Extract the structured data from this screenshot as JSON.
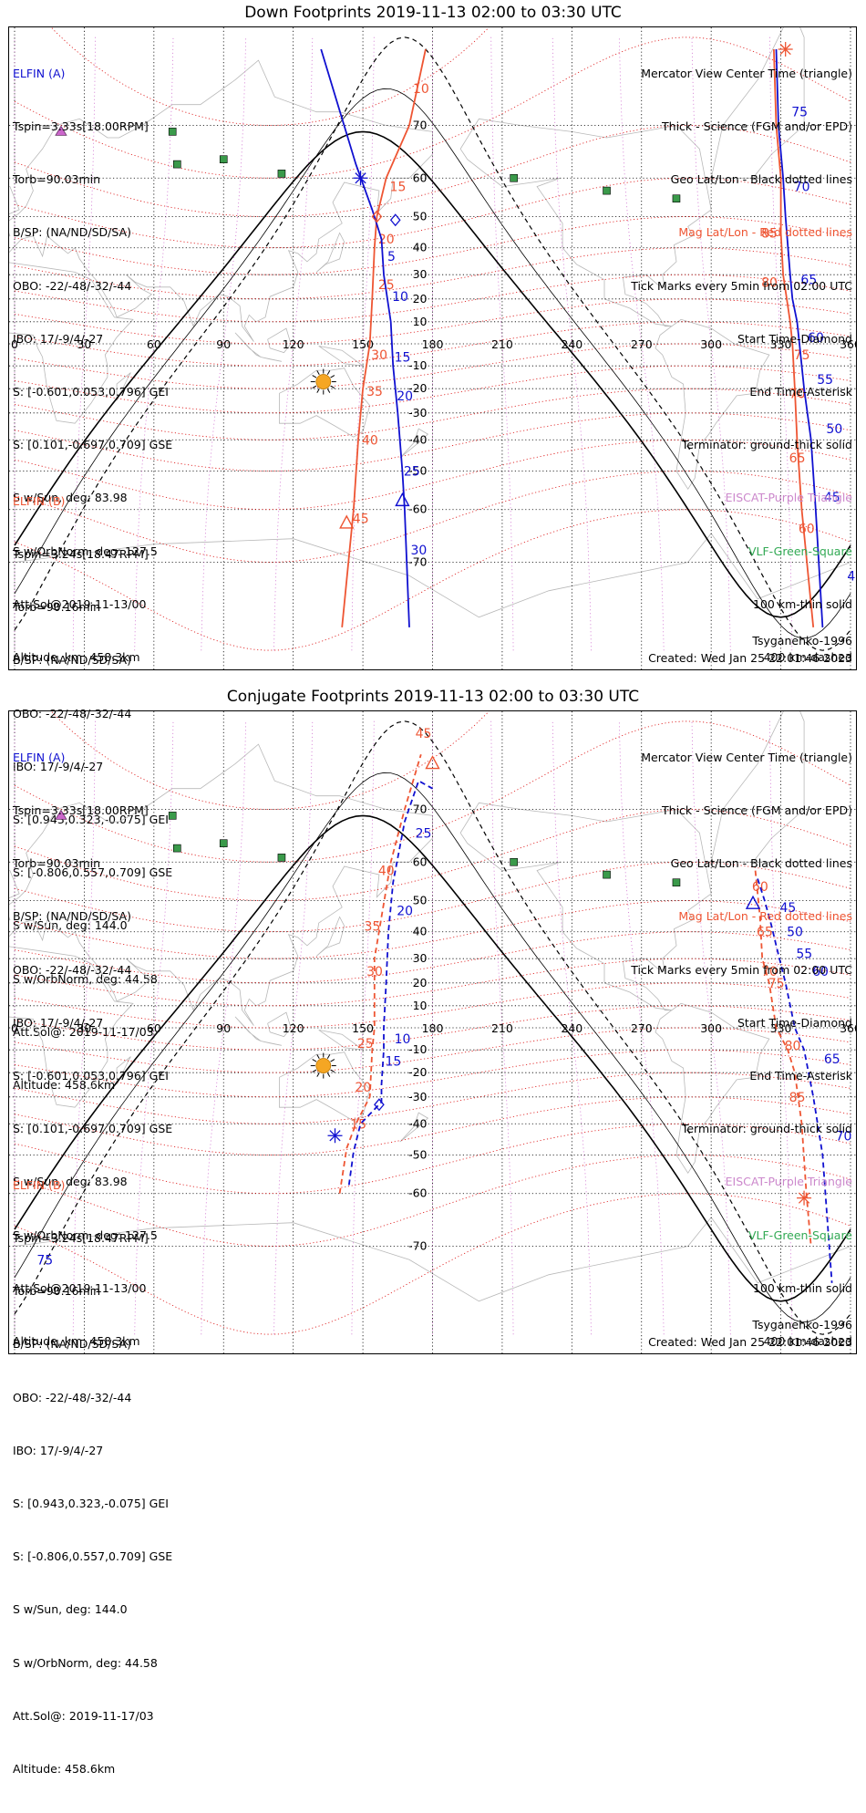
{
  "colors": {
    "blue": "#1010d0",
    "red": "#ee5533",
    "magred": "#dd1111",
    "purple": "#cc66cc",
    "green": "#3a9a4a",
    "sun": "#f5a623"
  },
  "axis": {
    "lon_ticks": [
      "0",
      "30",
      "60",
      "90",
      "120",
      "150",
      "180",
      "210",
      "240",
      "270",
      "300",
      "330",
      "360"
    ],
    "lat_ticks": [
      "70",
      "60",
      "50",
      "40",
      "30",
      "20",
      "10",
      "-10",
      "-20",
      "-30",
      "-40",
      "-50",
      "-60",
      "-70"
    ]
  },
  "legend": [
    "Mercator View Center Time (triangle)",
    "Thick - Science (FGM and/or EPD)",
    "Geo Lat/Lon - Black dotted lines",
    "Mag Lat/Lon - Red dotted lines",
    "Tick Marks every 5min from 02:00 UTC",
    "Start Time-Diamond",
    "End Time-Asterisk",
    "Terminator: ground-thick solid",
    "EISCAT-Purple Triangle",
    "VLF-Green-Square",
    "100 km-thin solid",
    "400 km-dashed"
  ],
  "elfin_a": {
    "label": "ELFIN (A)",
    "lines": [
      "Tspin=3.33s[18.00RPM]",
      "Torb=90.03min",
      "B/SP: (NA/ND/SD/SA)",
      "OBO: -22/-48/-32/-44",
      "IBO: 17/-9/4/-27",
      "S: [-0.601,0.053,0.796] GEI",
      "S: [0.101,-0.697,0.709] GSE",
      "S w/Sun, deg: 83.98",
      "S w/OrbNorm, deg: 127.5",
      "Att.Sol@2019-11-13/00",
      "Altitude, km: 458.3km"
    ]
  },
  "elfin_b": {
    "label": "ELFIN (B)",
    "lines": [
      "Tspin=3.24s[18.47RPM]",
      "Torb=90.16min",
      "B/SP: (NA/ND/SD/SA)",
      "OBO: -22/-48/-32/-44",
      "IBO: 17/-9/4/-27",
      "S: [0.943,0.323,-0.075] GEI",
      "S: [-0.806,0.557,0.709] GSE",
      "S w/Sun, deg: 144.0",
      "S w/OrbNorm, deg: 44.58",
      "Att.Sol@: 2019-11-17/03",
      "Altitude: 458.6km"
    ]
  },
  "model": "Tsyganenko-1996",
  "created": "Created: Wed Jan 25 22:01:46 2023",
  "panels": [
    {
      "title": "Down Footprints 2019-11-13 02:00 to 03:30 UTC",
      "a_pass1": {
        "pts": [
          [
            132,
            79
          ],
          [
            147,
            63
          ],
          [
            154,
            52
          ],
          [
            158,
            43
          ],
          [
            159,
            30
          ],
          [
            162,
            10
          ],
          [
            163,
            -10
          ],
          [
            164,
            -20
          ],
          [
            165,
            -30
          ],
          [
            167,
            -50
          ],
          [
            168,
            -60
          ],
          [
            170,
            -78
          ]
        ],
        "labels": [
          [
            "5",
            159,
            37
          ],
          [
            "10",
            161,
            21
          ],
          [
            "15",
            162,
            -6
          ],
          [
            "20",
            163,
            -23
          ],
          [
            "25",
            166,
            -50
          ],
          [
            "30",
            169,
            -68
          ]
        ]
      },
      "b_pass1": {
        "pts": [
          [
            177,
            79
          ],
          [
            170,
            70
          ],
          [
            160,
            60
          ],
          [
            156,
            50
          ],
          [
            155,
            40
          ],
          [
            154,
            20
          ],
          [
            153,
            0
          ],
          [
            150,
            -20
          ],
          [
            148,
            -40
          ],
          [
            146,
            -60
          ],
          [
            141,
            -78
          ]
        ],
        "labels": [
          [
            "10",
            170,
            75
          ],
          [
            "15",
            160,
            58
          ],
          [
            "20",
            155,
            43
          ],
          [
            "25",
            155,
            26
          ],
          [
            "30",
            152,
            -5
          ],
          [
            "35",
            150,
            -21
          ],
          [
            "40",
            148,
            -40
          ],
          [
            "45",
            144,
            -62
          ]
        ]
      },
      "a_pass2": {
        "pts": [
          [
            328,
            79
          ],
          [
            329,
            70
          ],
          [
            331,
            60
          ],
          [
            332,
            50
          ],
          [
            334,
            30
          ],
          [
            335,
            20
          ],
          [
            337,
            10
          ],
          [
            338,
            0
          ],
          [
            340,
            -20
          ],
          [
            343,
            -40
          ],
          [
            345,
            -60
          ],
          [
            348,
            -78
          ]
        ],
        "labels": [
          [
            "75",
            333,
            72
          ],
          [
            "70",
            334,
            58
          ],
          [
            "65",
            337,
            28
          ],
          [
            "60",
            340,
            3
          ],
          [
            "55",
            344,
            -16
          ],
          [
            "50",
            348,
            -36
          ],
          [
            "45",
            347,
            -57
          ],
          [
            "40",
            357,
            -72
          ]
        ]
      },
      "b_pass2": {
        "pts": [
          [
            327,
            79
          ],
          [
            328,
            70
          ],
          [
            330,
            60
          ],
          [
            330,
            45
          ],
          [
            331,
            30
          ],
          [
            334,
            10
          ],
          [
            335,
            0
          ],
          [
            336,
            -20
          ],
          [
            337,
            -40
          ],
          [
            339,
            -60
          ],
          [
            344,
            -78
          ]
        ],
        "labels": [
          [
            "85",
            320,
            45
          ],
          [
            "80",
            320,
            27
          ],
          [
            "75",
            334,
            -5
          ],
          [
            "70",
            332,
            -22
          ],
          [
            "65",
            332,
            -46
          ],
          [
            "60",
            336,
            -64
          ]
        ]
      },
      "start": [
        [
          164,
          49
        ],
        [
          156,
          50
        ]
      ],
      "end": [
        [
          149,
          60
        ],
        [
          332,
          79
        ]
      ],
      "center": [
        [
          167,
          -58
        ],
        [
          143,
          -63
        ]
      ],
      "eiscat": [
        20,
        69
      ],
      "sun": [
        133,
        -17
      ]
    },
    {
      "title": "Conjugate Footprints 2019-11-13 02:00 to 03:30 UTC",
      "a_pass1": {
        "pts": [
          [
            144,
            -58
          ],
          [
            146,
            -49
          ],
          [
            149,
            -40
          ],
          [
            158,
            -32
          ],
          [
            158,
            -25
          ],
          [
            159,
            -10
          ],
          [
            159,
            0
          ],
          [
            160,
            20
          ],
          [
            161,
            40
          ],
          [
            163,
            55
          ],
          [
            168,
            68
          ],
          [
            174,
            74
          ],
          [
            180,
            73
          ]
        ],
        "labels": [
          [
            "10",
            162,
            -5
          ],
          [
            "15",
            158,
            -15
          ],
          [
            "20",
            163,
            47
          ],
          [
            "25",
            171,
            66
          ]
        ]
      },
      "b_pass1": {
        "pts": [
          [
            140,
            -60
          ],
          [
            143,
            -48
          ],
          [
            147,
            -40
          ],
          [
            153,
            -30
          ],
          [
            154,
            -10
          ],
          [
            155,
            0
          ],
          [
            155,
            30
          ],
          [
            158,
            45
          ],
          [
            162,
            60
          ],
          [
            168,
            70
          ],
          [
            175,
            77
          ]
        ],
        "labels": [
          [
            "15",
            143,
            -40
          ],
          [
            "20",
            145,
            -26
          ],
          [
            "25",
            146,
            -7
          ],
          [
            "30",
            150,
            25
          ],
          [
            "35",
            149,
            42
          ],
          [
            "40",
            155,
            58
          ],
          [
            "45",
            171,
            79
          ]
        ]
      },
      "a_pass2": {
        "pts": [
          [
            320,
            56
          ],
          [
            323,
            50
          ],
          [
            326,
            42
          ],
          [
            328,
            35
          ],
          [
            332,
            20
          ],
          [
            336,
            0
          ],
          [
            340,
            -10
          ],
          [
            344,
            -30
          ],
          [
            348,
            -50
          ],
          [
            352,
            -75
          ]
        ],
        "labels": [
          [
            "45",
            328,
            48
          ],
          [
            "50",
            331,
            40
          ],
          [
            "55",
            335,
            32
          ],
          [
            "60",
            342,
            25
          ],
          [
            "65",
            347,
            -14
          ],
          [
            "70",
            352,
            -44
          ],
          [
            "75",
            8,
            -72
          ]
        ]
      },
      "b_pass2": {
        "pts": [
          [
            319,
            58
          ],
          [
            321,
            45
          ],
          [
            322,
            30
          ],
          [
            325,
            20
          ],
          [
            328,
            0
          ],
          [
            333,
            -10
          ],
          [
            336,
            -20
          ],
          [
            339,
            -40
          ],
          [
            341,
            -60
          ],
          [
            343,
            -70
          ]
        ],
        "labels": [
          [
            "60",
            316,
            54
          ],
          [
            "65",
            318,
            40
          ],
          [
            "70",
            320,
            25
          ],
          [
            "75",
            323,
            20
          ],
          [
            "80",
            330,
            -8
          ],
          [
            "85",
            332,
            -30
          ]
        ]
      },
      "start": [
        [
          157,
          -33
        ]
      ],
      "end": [
        [
          138,
          -44
        ],
        [
          340,
          -61
        ]
      ],
      "center": [
        [
          318,
          49
        ],
        [
          180,
          76
        ]
      ],
      "eiscat": [
        20,
        69
      ],
      "sun": [
        133,
        -17
      ]
    }
  ]
}
